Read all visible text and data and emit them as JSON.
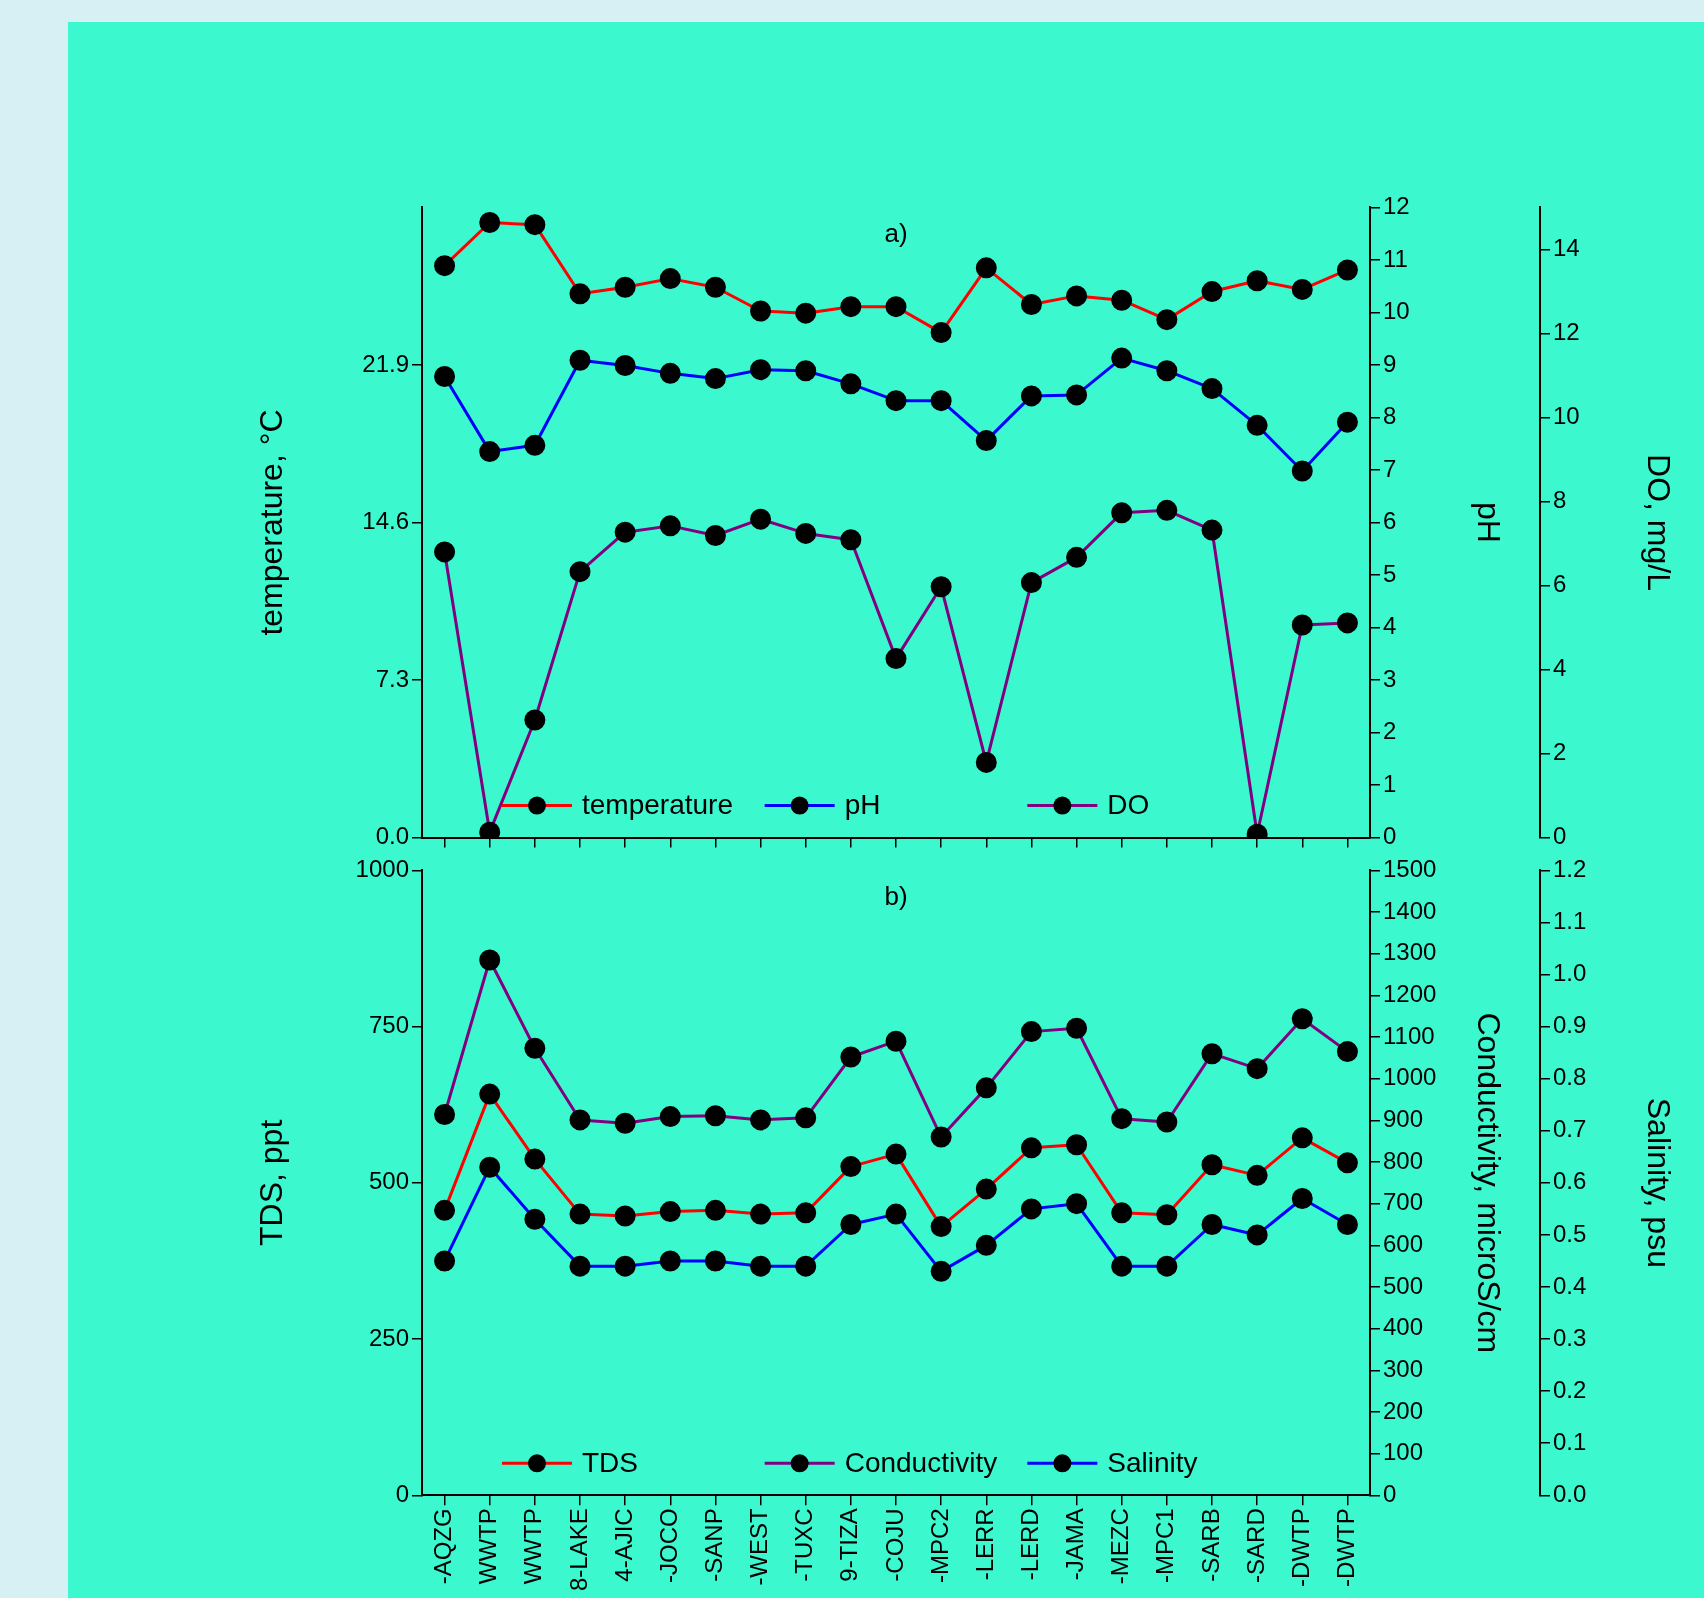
{
  "chart_data": [
    {
      "type": "line",
      "title": "a)",
      "ylabel": "temperature, °C",
      "y2label": "pH",
      "y3label": "DO, mg/L",
      "categories": [
        null,
        null,
        null,
        null,
        null,
        null,
        null,
        null,
        null,
        null,
        null,
        null,
        null,
        null,
        null,
        null,
        null,
        null,
        null,
        null,
        null
      ],
      "series": [
        {
          "name": "temperature",
          "color": "#ff0000",
          "values": [
            26.5,
            28.5,
            28.4,
            25.2,
            25.5,
            25.9,
            25.5,
            24.4,
            24.3,
            24.6,
            24.6,
            23.4,
            26.4,
            24.7,
            25.1,
            24.9,
            24.0,
            25.3,
            25.8,
            25.4,
            26.3
          ]
        },
        {
          "name": "pH",
          "color": "#0000ff",
          "axis": "y2",
          "values": [
            8.78,
            7.35,
            7.47,
            9.09,
            8.99,
            8.84,
            8.74,
            8.91,
            8.89,
            8.64,
            8.32,
            8.32,
            7.56,
            8.41,
            8.43,
            9.13,
            8.89,
            8.55,
            7.85,
            6.98,
            7.91
          ]
        },
        {
          "name": "DO",
          "color": "#800080",
          "axis": "y3",
          "values": [
            6.8,
            0.13,
            2.8,
            6.33,
            7.27,
            7.42,
            7.19,
            7.58,
            7.24,
            7.09,
            4.26,
            5.97,
            1.79,
            6.07,
            6.67,
            7.73,
            7.79,
            7.32,
            0.08,
            5.06,
            5.11
          ]
        }
      ],
      "ylim": [
        0,
        29.2
      ],
      "yticks": [
        {
          "value": 0,
          "label": "0.0"
        },
        7.3,
        14.6,
        21.9
      ],
      "y2lim": [
        0,
        12
      ],
      "y2ticks": [
        0,
        1,
        2,
        3,
        4,
        5,
        6,
        7,
        8,
        9,
        10,
        11,
        12
      ],
      "y3lim": [
        0,
        15
      ],
      "y3ticks": [
        0,
        2,
        4,
        6,
        8,
        10,
        12,
        14
      ],
      "tick_labels": "y",
      "marker": "circle",
      "legend": "bottom",
      "grid": false
    },
    {
      "type": "line",
      "title": "b)",
      "ylabel": "TDS, ppt",
      "y2label": "Conductivity, microS/cm",
      "y3label": "Salinity, psu",
      "categories": [
        "-AQZG",
        "WWTP",
        "WWTP",
        "8-LAKE",
        "4-AJIC",
        "-JOCO",
        "-SANP",
        "-WEST",
        "-TUXC",
        "9-TIZA",
        "-COJU",
        "-MPC2",
        "-LERR",
        "-LERD",
        "-JAMA",
        "-MEZC",
        "-MPC1",
        "-SARB",
        "-SARD",
        "-DWTP",
        "-DWTP"
      ],
      "series": [
        {
          "name": "TDS",
          "color": "#ff0000",
          "values": [
            456,
            642,
            538,
            450,
            447,
            454,
            456,
            450,
            452,
            526,
            546,
            430,
            490,
            556,
            561,
            452,
            449,
            529,
            512,
            572,
            532
          ]
        },
        {
          "name": "Conductivity",
          "color": "#800080",
          "axis": "y2",
          "values": [
            914,
            1285,
            1073,
            901,
            893,
            909,
            911,
            901,
            906,
            1052,
            1090,
            860,
            978,
            1113,
            1121,
            904,
            896,
            1060,
            1024,
            1144,
            1065
          ]
        },
        {
          "name": "Salinity",
          "color": "#0000ff",
          "axis": "y3",
          "values": [
            0.45,
            0.63,
            0.53,
            0.44,
            0.44,
            0.45,
            0.45,
            0.44,
            0.44,
            0.52,
            0.54,
            0.43,
            0.48,
            0.55,
            0.56,
            0.44,
            0.44,
            0.52,
            0.5,
            0.57,
            0.52
          ]
        }
      ],
      "ylim": [
        0,
        1000
      ],
      "yticks": [
        0,
        250,
        500,
        750,
        1000
      ],
      "y2lim": [
        0,
        1500
      ],
      "y2ticks": [
        0,
        100,
        200,
        300,
        400,
        500,
        600,
        700,
        800,
        900,
        1000,
        1100,
        1200,
        1300,
        1400,
        1500
      ],
      "y3lim": [
        0,
        1.2
      ],
      "y3ticks": [
        {
          "value": 0,
          "label": "0.0"
        },
        0.1,
        0.2,
        0.3,
        0.4,
        0.5,
        0.6,
        0.7,
        0.8,
        0.9,
        {
          "value": 1,
          "label": "1.0"
        },
        1.1,
        1.2
      ],
      "marker": "circle",
      "legend": "bottom",
      "grid": false
    }
  ]
}
